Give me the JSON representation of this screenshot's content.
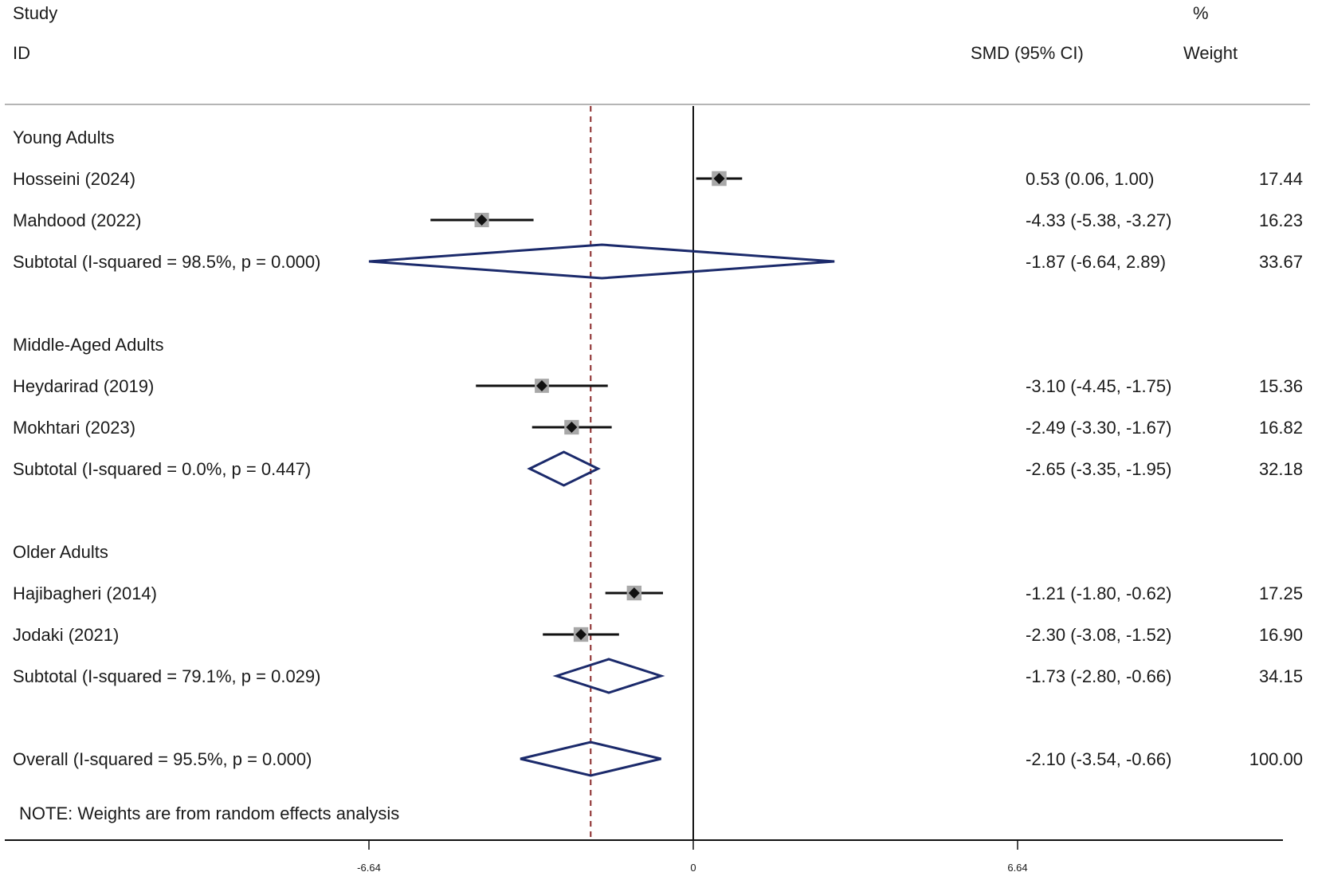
{
  "header": {
    "study_line1": "Study",
    "study_line2": "ID",
    "smd_label": "SMD (95% CI)",
    "weight_line1": "%",
    "weight_line2": "Weight"
  },
  "note": "NOTE: Weights are from random effects analysis",
  "colors": {
    "diamond": "#1b2a6b",
    "marker": "#111111",
    "weight_box": "#a8a8a8",
    "overall_line": "#8b2a2a",
    "axis": "#111111"
  },
  "chart_data": {
    "type": "forest",
    "effect_measure": "SMD (95% CI)",
    "xlim": [
      -9.5,
      9.5
    ],
    "x_ticks": [
      -6.64,
      0,
      6.64
    ],
    "x_tick_labels": [
      "-6.64",
      "0",
      "6.64"
    ],
    "null_line": 0,
    "overall_estimate_line": -2.1,
    "groups": [
      {
        "name": "Young Adults",
        "studies": [
          {
            "id": "Hosseini (2024)",
            "smd": 0.53,
            "lower": 0.06,
            "upper": 1.0,
            "ci_text": "0.53 (0.06, 1.00)",
            "weight": 17.44,
            "weight_text": "17.44"
          },
          {
            "id": "Mahdood (2022)",
            "smd": -4.33,
            "lower": -5.38,
            "upper": -3.27,
            "ci_text": "-4.33 (-5.38, -3.27)",
            "weight": 16.23,
            "weight_text": "16.23"
          }
        ],
        "subtotal": {
          "label": "Subtotal  (I-squared = 98.5%, p = 0.000)",
          "smd": -1.87,
          "lower": -6.64,
          "upper": 2.89,
          "ci_text": "-1.87 (-6.64, 2.89)",
          "weight": 33.67,
          "weight_text": "33.67"
        }
      },
      {
        "name": "Middle-Aged Adults",
        "studies": [
          {
            "id": "Heydarirad  (2019)",
            "smd": -3.1,
            "lower": -4.45,
            "upper": -1.75,
            "ci_text": "-3.10 (-4.45, -1.75)",
            "weight": 15.36,
            "weight_text": "15.36"
          },
          {
            "id": "Mokhtari (2023)",
            "smd": -2.49,
            "lower": -3.3,
            "upper": -1.67,
            "ci_text": "-2.49 (-3.30, -1.67)",
            "weight": 16.82,
            "weight_text": "16.82"
          }
        ],
        "subtotal": {
          "label": "Subtotal  (I-squared = 0.0%, p = 0.447)",
          "smd": -2.65,
          "lower": -3.35,
          "upper": -1.95,
          "ci_text": "-2.65 (-3.35, -1.95)",
          "weight": 32.18,
          "weight_text": "32.18"
        }
      },
      {
        "name": "Older Adults",
        "studies": [
          {
            "id": "Hajibagheri  (2014)",
            "smd": -1.21,
            "lower": -1.8,
            "upper": -0.62,
            "ci_text": "-1.21 (-1.80, -0.62)",
            "weight": 17.25,
            "weight_text": "17.25"
          },
          {
            "id": "Jodaki (2021)",
            "smd": -2.3,
            "lower": -3.08,
            "upper": -1.52,
            "ci_text": "-2.30 (-3.08, -1.52)",
            "weight": 16.9,
            "weight_text": "16.90"
          }
        ],
        "subtotal": {
          "label": "Subtotal  (I-squared = 79.1%, p = 0.029)",
          "smd": -1.73,
          "lower": -2.8,
          "upper": -0.66,
          "ci_text": "-1.73 (-2.80, -0.66)",
          "weight": 34.15,
          "weight_text": "34.15"
        }
      }
    ],
    "overall": {
      "label": "Overall  (I-squared = 95.5%, p = 0.000)",
      "smd": -2.1,
      "lower": -3.54,
      "upper": -0.66,
      "ci_text": "-2.10 (-3.54, -0.66)",
      "weight": 100.0,
      "weight_text": "100.00"
    }
  }
}
